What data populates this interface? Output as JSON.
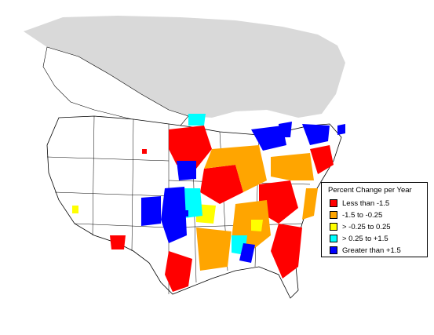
{
  "legend": {
    "title": "Percent Change per Year",
    "items": [
      {
        "label": "Less than -1.5",
        "color": "#ff0000"
      },
      {
        "label": "-1.5 to -0.25",
        "color": "#ffa500"
      },
      {
        "label": "> -0.25 to 0.25",
        "color": "#ffff00"
      },
      {
        "label": "> 0.25 to +1.5",
        "color": "#00ffff"
      },
      {
        "label": "Greater than +1.5",
        "color": "#0000ff"
      }
    ]
  },
  "colors": {
    "no_data_region": "#d9d9d9",
    "land": "#ffffff",
    "border": "#000000"
  }
}
